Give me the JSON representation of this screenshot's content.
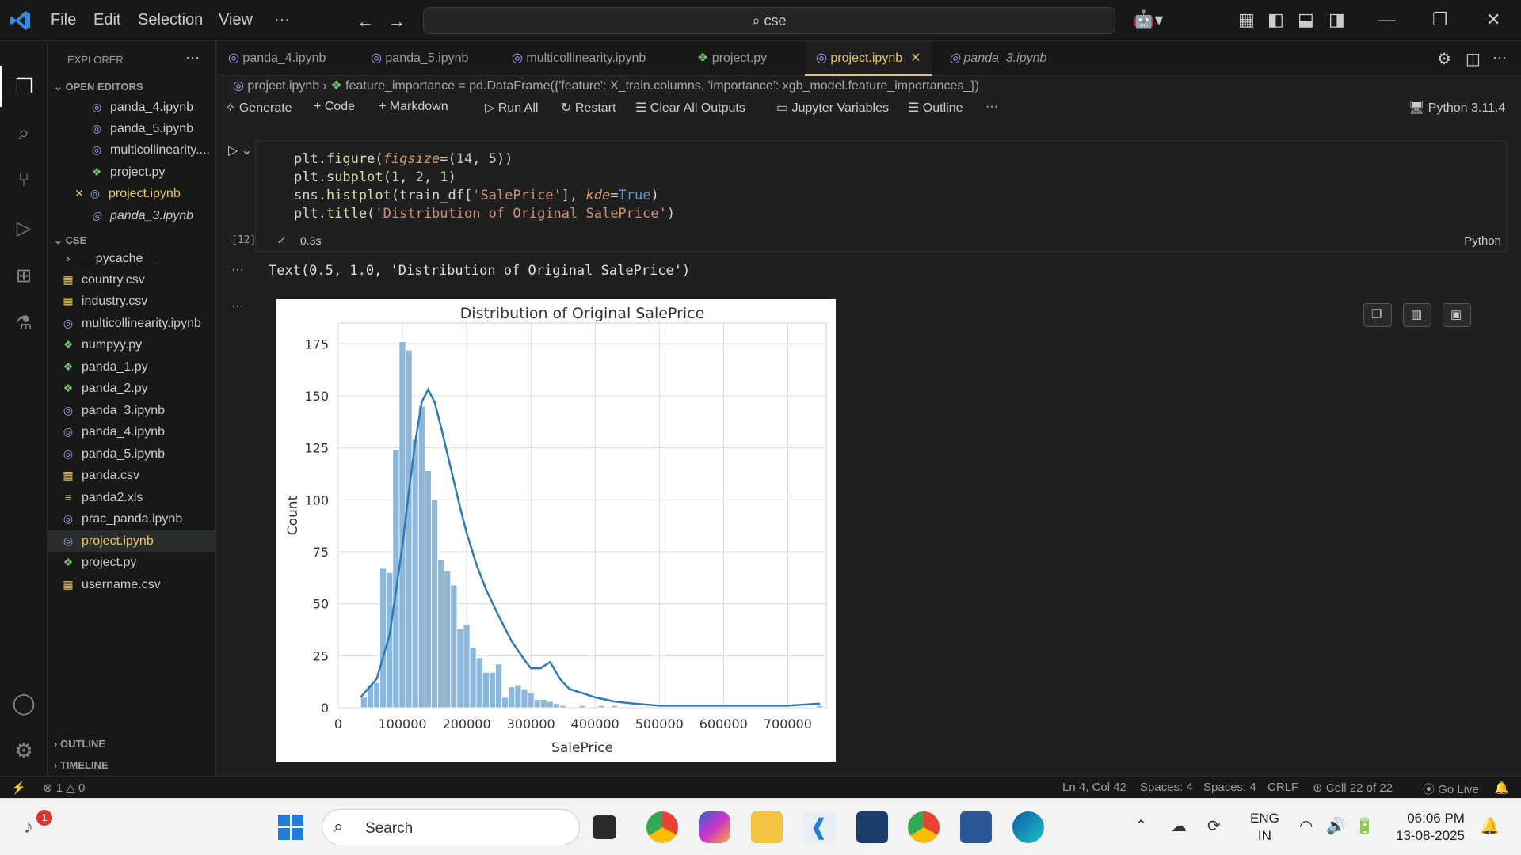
{
  "titlebar": {
    "menu": [
      "File",
      "Edit",
      "Selection",
      "View",
      "···"
    ],
    "search": "cse"
  },
  "sidebar": {
    "header": "EXPLORER",
    "open_editors_label": "OPEN EDITORS",
    "open_editors": [
      "panda_4.ipynb",
      "panda_5.ipynb",
      "multicollinearity....",
      "project.py",
      "project.ipynb",
      "panda_3.ipynb"
    ],
    "folder_label": "CSE",
    "files": [
      "__pycache__",
      "country.csv",
      "industry.csv",
      "multicollinearity.ipynb",
      "numpyy.py",
      "panda_1.py",
      "panda_2.py",
      "panda_3.ipynb",
      "panda_4.ipynb",
      "panda_5.ipynb",
      "panda.csv",
      "panda2.xls",
      "prac_panda.ipynb",
      "project.ipynb",
      "project.py",
      "username.csv"
    ],
    "outline_label": "OUTLINE",
    "timeline_label": "TIMELINE"
  },
  "tabs": [
    "panda_4.ipynb",
    "panda_5.ipynb",
    "multicollinearity.ipynb",
    "project.py",
    "project.ipynb",
    "panda_3.ipynb"
  ],
  "breadcrumb": {
    "file": "project.ipynb",
    "symbol": "feature_importance = pd.DataFrame({'feature': X_train.columns, 'importance': xgb_model.feature_importances_})"
  },
  "toolbar": {
    "generate": "Generate",
    "code": "Code",
    "markdown": "Markdown",
    "run_all": "Run All",
    "restart": "Restart",
    "clear": "Clear All Outputs",
    "variables": "Jupyter Variables",
    "outline": "Outline",
    "more": "···",
    "kernel": "Python 3.11.4"
  },
  "cell": {
    "exec_count": "[12]",
    "time": "0.3s",
    "language": "Python"
  },
  "output_text": "Text(0.5, 1.0, 'Distribution of Original SalePrice')",
  "chart_data": {
    "type": "bar",
    "title": "Distribution of Original SalePrice",
    "xlabel": "SalePrice",
    "ylabel": "Count",
    "xlim": [
      0,
      760000
    ],
    "ylim": [
      0,
      185
    ],
    "xticks": [
      0,
      100000,
      200000,
      300000,
      400000,
      500000,
      600000,
      700000
    ],
    "xtick_labels": [
      "0",
      "100000",
      "200000",
      "300000",
      "400000",
      "500000",
      "600000",
      "700000"
    ],
    "yticks": [
      0,
      25,
      50,
      75,
      100,
      125,
      150,
      175
    ],
    "bin_start": 34900,
    "bin_width": 10000,
    "values": [
      5,
      11,
      12,
      67,
      65,
      124,
      176,
      172,
      129,
      145,
      114,
      100,
      71,
      66,
      59,
      38,
      40,
      29,
      24,
      17,
      17,
      21,
      5,
      10,
      11,
      9,
      7,
      4,
      4,
      3,
      2,
      1,
      0,
      0,
      1,
      0,
      0,
      1,
      0,
      1,
      0,
      0,
      0,
      0,
      0,
      0,
      0,
      0,
      0,
      0,
      0,
      0,
      0,
      0,
      0,
      0,
      0,
      0,
      0,
      0,
      0,
      0,
      0,
      0,
      0,
      0,
      0,
      0,
      0,
      0,
      0,
      1
    ],
    "kde_x": [
      34900,
      60000,
      80000,
      100000,
      110000,
      120000,
      130000,
      140000,
      150000,
      160000,
      170000,
      180000,
      190000,
      200000,
      215000,
      230000,
      250000,
      270000,
      290000,
      300000,
      315000,
      330000,
      345000,
      360000,
      380000,
      400000,
      430000,
      460000,
      500000,
      550000,
      600000,
      650000,
      700000,
      750000
    ],
    "kde_y": [
      5,
      14,
      35,
      78,
      104,
      128,
      147,
      153,
      147,
      135,
      122,
      109,
      96,
      84,
      69,
      57,
      44,
      32,
      23,
      19,
      19,
      22,
      14,
      9,
      7,
      5,
      3,
      2,
      1,
      1,
      1,
      1,
      1,
      2
    ],
    "grid": true,
    "color": "#5a9bd4"
  },
  "statusbar": {
    "errors": "⊗ 1 △ 0",
    "position": "Ln 4, Col 42",
    "spaces1": "Spaces: 4",
    "spaces2": "Spaces: 4",
    "eol": "CRLF",
    "cell": "Cell 22 of 22",
    "golive": "Go Live"
  },
  "taskbar": {
    "search": "Search",
    "lang1": "ENG",
    "lang2": "IN",
    "time": "06:06 PM",
    "date": "13-08-2025"
  }
}
